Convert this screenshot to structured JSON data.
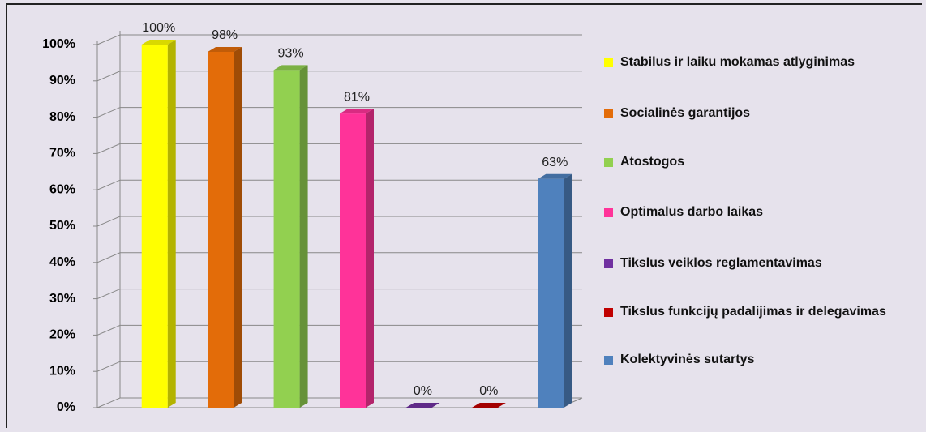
{
  "chart_data": {
    "type": "bar3d",
    "categories": [
      "Stabilus ir laiku mokamas atlyginimas",
      "Socialinės garantijos",
      "Atostogos",
      "Optimalus darbo laikas",
      "Tikslus veiklos reglamentavimas",
      "Tikslus funkcijų padalijimas ir delegavimas",
      "Kolektyvinės sutartys"
    ],
    "values": [
      100,
      98,
      93,
      81,
      0,
      0,
      63
    ],
    "value_labels": [
      "100%",
      "98%",
      "93%",
      "81%",
      "0%",
      "0%",
      "63%"
    ],
    "colors": [
      "#ffff00",
      "#e36c09",
      "#92d050",
      "#ff3399",
      "#7030a0",
      "#c00000",
      "#4f81bd"
    ],
    "ylim": [
      0,
      100
    ],
    "yticks": [
      {
        "value": 0,
        "label": "0%"
      },
      {
        "value": 10,
        "label": "10%"
      },
      {
        "value": 20,
        "label": "20%"
      },
      {
        "value": 30,
        "label": "30%"
      },
      {
        "value": 40,
        "label": "40%"
      },
      {
        "value": 50,
        "label": "50%"
      },
      {
        "value": 60,
        "label": "60%"
      },
      {
        "value": 70,
        "label": "70%"
      },
      {
        "value": 80,
        "label": "80%"
      },
      {
        "value": 90,
        "label": "90%"
      },
      {
        "value": 100,
        "label": "100%"
      }
    ],
    "grid": true,
    "legend": "right"
  }
}
